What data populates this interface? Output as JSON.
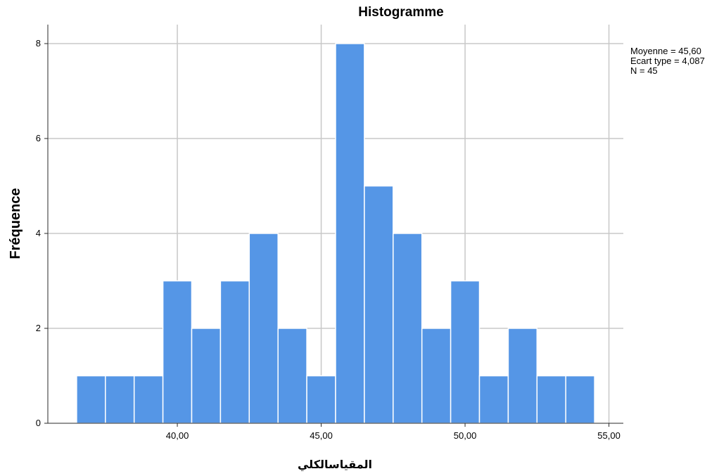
{
  "chart_data": {
    "type": "bar",
    "title": "Histogramme",
    "xlabel": "المقياسالكلي",
    "ylabel": "Fréquence",
    "bin_width": 1,
    "bins": [
      {
        "start": 36.5,
        "end": 37.5,
        "count": 1
      },
      {
        "start": 37.5,
        "end": 38.5,
        "count": 1
      },
      {
        "start": 38.5,
        "end": 39.5,
        "count": 1
      },
      {
        "start": 39.5,
        "end": 40.5,
        "count": 3
      },
      {
        "start": 40.5,
        "end": 41.5,
        "count": 2
      },
      {
        "start": 41.5,
        "end": 42.5,
        "count": 3
      },
      {
        "start": 42.5,
        "end": 43.5,
        "count": 4
      },
      {
        "start": 43.5,
        "end": 44.5,
        "count": 2
      },
      {
        "start": 44.5,
        "end": 45.5,
        "count": 1
      },
      {
        "start": 45.5,
        "end": 46.5,
        "count": 8
      },
      {
        "start": 46.5,
        "end": 47.5,
        "count": 5
      },
      {
        "start": 47.5,
        "end": 48.5,
        "count": 4
      },
      {
        "start": 48.5,
        "end": 49.5,
        "count": 2
      },
      {
        "start": 49.5,
        "end": 50.5,
        "count": 3
      },
      {
        "start": 50.5,
        "end": 51.5,
        "count": 1
      },
      {
        "start": 51.5,
        "end": 52.5,
        "count": 2
      },
      {
        "start": 52.5,
        "end": 53.5,
        "count": 1
      },
      {
        "start": 53.5,
        "end": 54.5,
        "count": 1
      }
    ],
    "xlim": [
      35.5,
      55.5
    ],
    "ylim": [
      0,
      8.4
    ],
    "x_ticks": [
      {
        "value": 40,
        "label": "40,00"
      },
      {
        "value": 45,
        "label": "45,00"
      },
      {
        "value": 50,
        "label": "50,00"
      },
      {
        "value": 55,
        "label": "55,00"
      }
    ],
    "y_ticks": [
      {
        "value": 0,
        "label": "0"
      },
      {
        "value": 2,
        "label": "2"
      },
      {
        "value": 4,
        "label": "4"
      },
      {
        "value": 6,
        "label": "6"
      },
      {
        "value": 8,
        "label": "8"
      }
    ],
    "grid": true,
    "legend": "none",
    "bar_color": "#5596e6",
    "stats": [
      "Moyenne = 45,60",
      "Ecart type = 4,087",
      "N = 45"
    ]
  }
}
